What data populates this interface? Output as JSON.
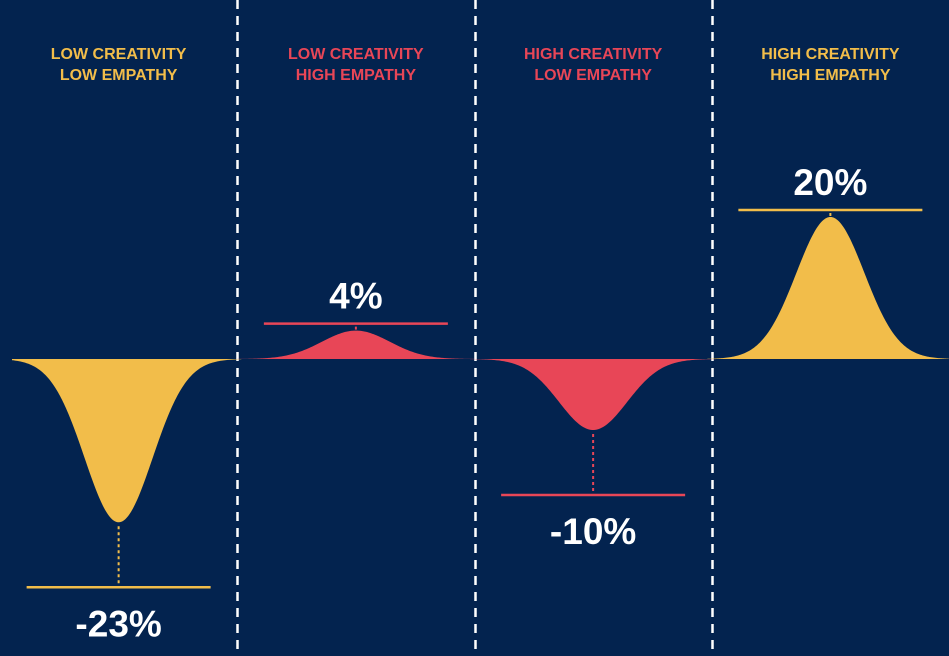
{
  "chart_data": {
    "type": "area",
    "categories": [
      {
        "line1": "LOW CREATIVITY",
        "line2": "LOW EMPATHY",
        "value": -23,
        "label": "-23%",
        "color": "#f2bd4a"
      },
      {
        "line1": "LOW CREATIVITY",
        "line2": "HIGH EMPATHY",
        "value": 4,
        "label": "4%",
        "color": "#e84657"
      },
      {
        "line1": "HIGH CREATIVITY",
        "line2": "LOW EMPATHY",
        "value": -10,
        "label": "-10%",
        "color": "#e84657"
      },
      {
        "line1": "HIGH CREATIVITY",
        "line2": "HIGH EMPATHY",
        "value": 20,
        "label": "20%",
        "color": "#f2bd4a"
      }
    ],
    "title": "",
    "xlabel": "",
    "ylabel": "",
    "grid": false
  },
  "colors": {
    "background": "#03234f",
    "divider": "#ffffff",
    "value_text": "#ffffff"
  }
}
